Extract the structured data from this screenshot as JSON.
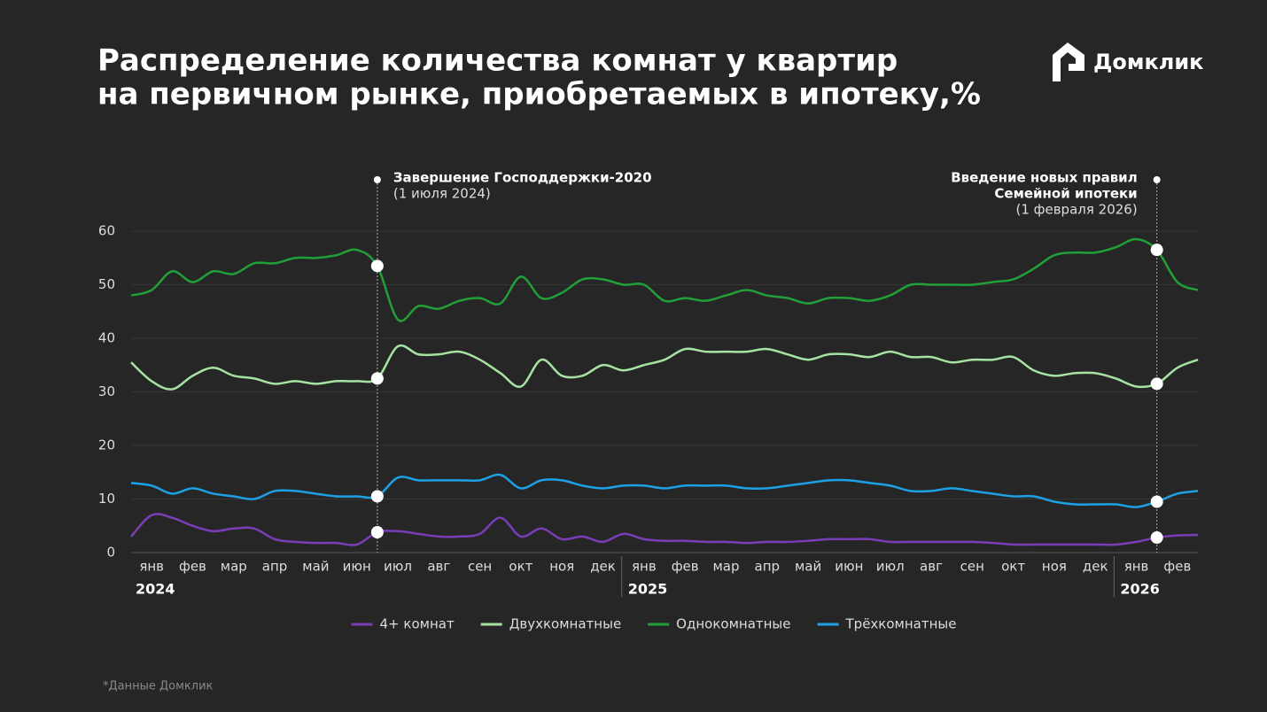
{
  "brand": "Домклик",
  "footnote": "*Данные Домклик",
  "chart_data": {
    "type": "line",
    "title": [
      "Распределение количества комнат у квартир",
      "на первичном рынке, приобретаемых в ипотеку,%"
    ],
    "categories": [
      null,
      "янв",
      null,
      "фев",
      null,
      "мар",
      null,
      "апр",
      null,
      "май",
      null,
      "июн",
      null,
      "июл",
      null,
      "авг",
      null,
      "сен",
      null,
      "окт",
      null,
      "ноя",
      null,
      "дек",
      null,
      "янв",
      null,
      "фев",
      null,
      "мар",
      null,
      "апр",
      null,
      "май",
      null,
      "июн",
      null,
      "июл",
      null,
      "авг",
      null,
      "сен",
      null,
      "окт",
      null,
      "ноя",
      null,
      "дек",
      null,
      "янв",
      null,
      "фев",
      null
    ],
    "years": [
      null,
      "2024",
      null,
      null,
      null,
      null,
      null,
      null,
      null,
      null,
      null,
      null,
      null,
      null,
      null,
      null,
      null,
      null,
      null,
      null,
      null,
      null,
      null,
      null,
      null,
      "2025",
      null,
      null,
      null,
      null,
      null,
      null,
      null,
      null,
      null,
      null,
      null,
      null,
      null,
      null,
      null,
      null,
      null,
      null,
      null,
      null,
      null,
      null,
      null,
      "2026",
      null,
      null,
      null
    ],
    "ylim": [
      0,
      60
    ],
    "yticks": [
      0,
      10,
      20,
      30,
      40,
      50,
      60
    ],
    "grid": true,
    "series": [
      {
        "name": "4+ комнат",
        "color": "#7a3db8",
        "values": [
          3,
          7,
          6.5,
          5,
          4,
          4.5,
          4.5,
          2.5,
          2,
          1.8,
          1.8,
          1.5,
          3.8,
          4,
          3.5,
          3,
          3,
          3.5,
          6.5,
          3,
          4.5,
          2.5,
          3,
          2,
          3.5,
          2.5,
          2.2,
          2.2,
          2,
          2,
          1.8,
          2,
          2,
          2.2,
          2.5,
          2.5,
          2.5,
          2,
          2,
          2,
          2,
          2,
          1.8,
          1.5,
          1.5,
          1.5,
          1.5,
          1.5,
          1.5,
          2,
          2.8,
          3.2,
          3.3
        ]
      },
      {
        "name": "Двухкомнатные",
        "color": "#a6e3a1",
        "values": [
          35.5,
          32,
          30.5,
          33,
          34.5,
          33,
          32.5,
          31.5,
          32,
          31.5,
          32,
          32,
          32.5,
          38.5,
          37,
          37,
          37.5,
          36,
          33.5,
          31,
          36,
          33,
          33,
          35,
          34,
          35,
          36,
          38,
          37.5,
          37.5,
          37.5,
          38,
          37,
          36,
          37,
          37,
          36.5,
          37.5,
          36.5,
          36.5,
          35.5,
          36,
          36,
          36.5,
          34,
          33,
          33.5,
          33.5,
          32.5,
          31,
          31.5,
          34.5,
          36
        ]
      },
      {
        "name": "Однокомнатные",
        "color": "#21a038",
        "values": [
          48,
          49,
          52.5,
          50.5,
          52.5,
          52,
          54,
          54,
          55,
          55,
          55.5,
          56.5,
          53.5,
          43.5,
          46,
          45.5,
          47,
          47.5,
          46.5,
          51.5,
          47.5,
          48.5,
          51,
          51,
          50,
          50,
          47,
          47.5,
          47,
          48,
          49,
          48,
          47.5,
          46.5,
          47.5,
          47.5,
          47,
          48,
          50,
          50,
          50,
          50,
          50.5,
          51,
          53,
          55.5,
          56,
          56,
          57,
          58.5,
          56.5,
          50.5,
          49
        ]
      },
      {
        "name": "Трёхкомнатные",
        "color": "#1da1e6",
        "values": [
          13,
          12.5,
          11,
          12,
          11,
          10.5,
          10,
          11.5,
          11.5,
          11,
          10.5,
          10.5,
          10.5,
          14,
          13.5,
          13.5,
          13.5,
          13.5,
          14.5,
          12,
          13.5,
          13.5,
          12.5,
          12,
          12.5,
          12.5,
          12,
          12.5,
          12.5,
          12.5,
          12,
          12,
          12.5,
          13,
          13.5,
          13.5,
          13,
          12.5,
          11.5,
          11.5,
          12,
          11.5,
          11,
          10.5,
          10.5,
          9.5,
          9,
          9,
          9,
          8.5,
          9.5,
          11,
          11.5
        ]
      }
    ],
    "annotations": [
      {
        "x_index": 12,
        "title": [
          "Завершение Господдержки-2020"
        ],
        "date": "(1 июля 2024)"
      },
      {
        "x_index": 50,
        "title": [
          "Введение новых правил",
          "Семейной ипотеки"
        ],
        "date": "(1 февраля 2026)"
      }
    ]
  }
}
